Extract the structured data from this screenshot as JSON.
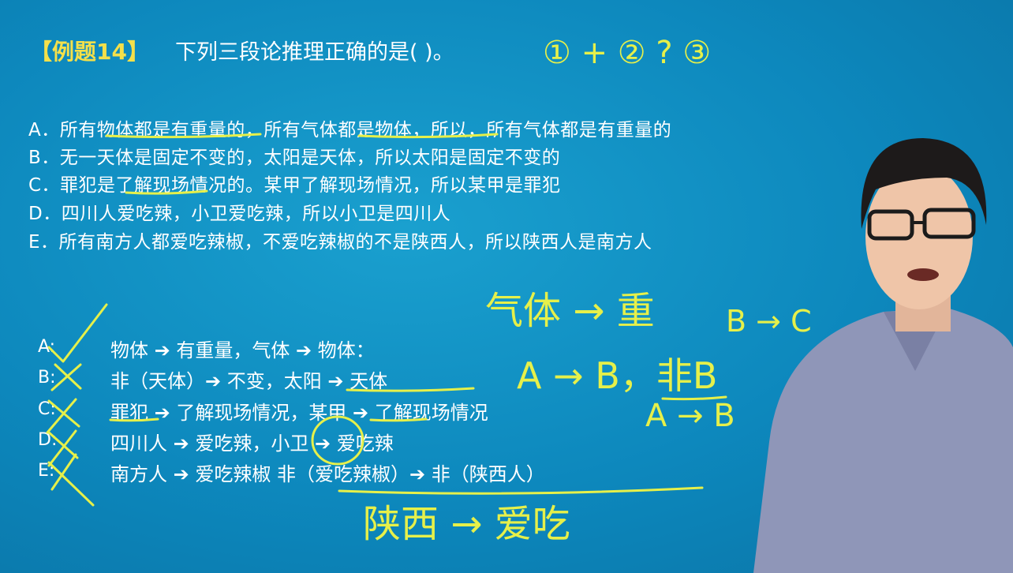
{
  "title": {
    "tag": "【例题14】",
    "question": "下列三段论推理正确的是( )。"
  },
  "options": [
    "A．所有物体都是有重量的，所有气体都是物体，所以，所有气体都是有重量的",
    "B．无一天体是固定不变的，太阳是天体，所以太阳是固定不变的",
    "C．罪犯是了解现场情况的。某甲了解现场情况，所以某甲是罪犯",
    "D．四川人爱吃辣，小卫爱吃辣，所以小卫是四川人",
    "E．所有南方人都爱吃辣椒，不爱吃辣椒的不是陕西人，所以陕西人是南方人"
  ],
  "answers": [
    {
      "letter": "A:",
      "text": "物体 ➔ 有重量，气体 ➔ 物体："
    },
    {
      "letter": "B:",
      "text": "非（天体）➔ 不变，太阳 ➔ 天体"
    },
    {
      "letter": "C:",
      "text": "罪犯 ➔ 了解现场情况，某甲 ➔ 了解现场情况"
    },
    {
      "letter": "D:",
      "text": "四川人 ➔ 爱吃辣，小卫 ➔ 爱吃辣"
    },
    {
      "letter": "E:",
      "text": "南方人 ➔ 爱吃辣椒   非（爱吃辣椒）➔ 非（陕西人）"
    }
  ],
  "handwriting": {
    "top_note": "① + ②  ?  ③",
    "gas_to_weight": "气体 → 重",
    "rule": "A → B，非B",
    "conclusion": "A → B",
    "b_to_c": "B → C",
    "shaanxi": "陕西 → 爱吃"
  },
  "colors": {
    "background": "#0d88bd",
    "accent_yellow": "#f4e04a",
    "ink": "#e6f04a",
    "text": "#ffffff"
  }
}
